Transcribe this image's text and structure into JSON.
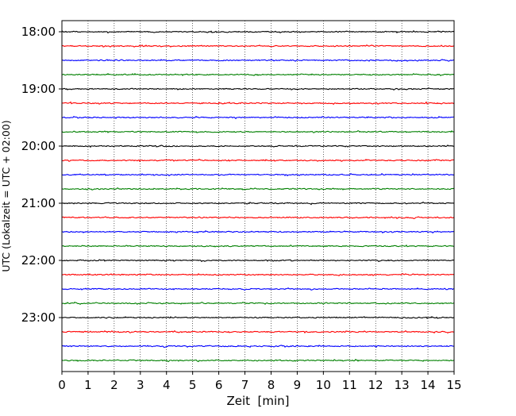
{
  "chart_data": {
    "type": "line",
    "title": "",
    "xlabel": "Zeit  [min]",
    "ylabel": "UTC (Lokalzeit = UTC + 02:00)",
    "xlim": [
      0,
      15
    ],
    "x_ticks": [
      0,
      1,
      2,
      3,
      4,
      5,
      6,
      7,
      8,
      9,
      10,
      11,
      12,
      13,
      14,
      15
    ],
    "x_tick_labels": [
      "0",
      "1",
      "2",
      "3",
      "4",
      "5",
      "6",
      "7",
      "8",
      "9",
      "10",
      "11",
      "12",
      "13",
      "14",
      "15"
    ],
    "y_tick_labels": [
      "18:00",
      "19:00",
      "20:00",
      "21:00",
      "22:00",
      "23:00"
    ],
    "traces_per_hour": 4,
    "trace_colors": [
      "#000000",
      "#ff0000",
      "#0000ff",
      "#008000"
    ],
    "x_grid": "dotted",
    "y_grid": false,
    "legend": "none",
    "traces": [
      {
        "start": "18:00",
        "color": "#000000"
      },
      {
        "start": "18:15",
        "color": "#ff0000"
      },
      {
        "start": "18:30",
        "color": "#0000ff"
      },
      {
        "start": "18:45",
        "color": "#008000"
      },
      {
        "start": "19:00",
        "color": "#000000"
      },
      {
        "start": "19:15",
        "color": "#ff0000"
      },
      {
        "start": "19:30",
        "color": "#0000ff"
      },
      {
        "start": "19:45",
        "color": "#008000"
      },
      {
        "start": "20:00",
        "color": "#000000"
      },
      {
        "start": "20:15",
        "color": "#ff0000"
      },
      {
        "start": "20:30",
        "color": "#0000ff"
      },
      {
        "start": "20:45",
        "color": "#008000"
      },
      {
        "start": "21:00",
        "color": "#000000"
      },
      {
        "start": "21:15",
        "color": "#ff0000"
      },
      {
        "start": "21:30",
        "color": "#0000ff"
      },
      {
        "start": "21:45",
        "color": "#008000"
      },
      {
        "start": "22:00",
        "color": "#000000"
      },
      {
        "start": "22:15",
        "color": "#ff0000"
      },
      {
        "start": "22:30",
        "color": "#0000ff"
      },
      {
        "start": "22:45",
        "color": "#008000"
      },
      {
        "start": "23:00",
        "color": "#000000"
      },
      {
        "start": "23:15",
        "color": "#ff0000"
      },
      {
        "start": "23:30",
        "color": "#0000ff"
      },
      {
        "start": "23:45",
        "color": "#008000"
      }
    ]
  }
}
